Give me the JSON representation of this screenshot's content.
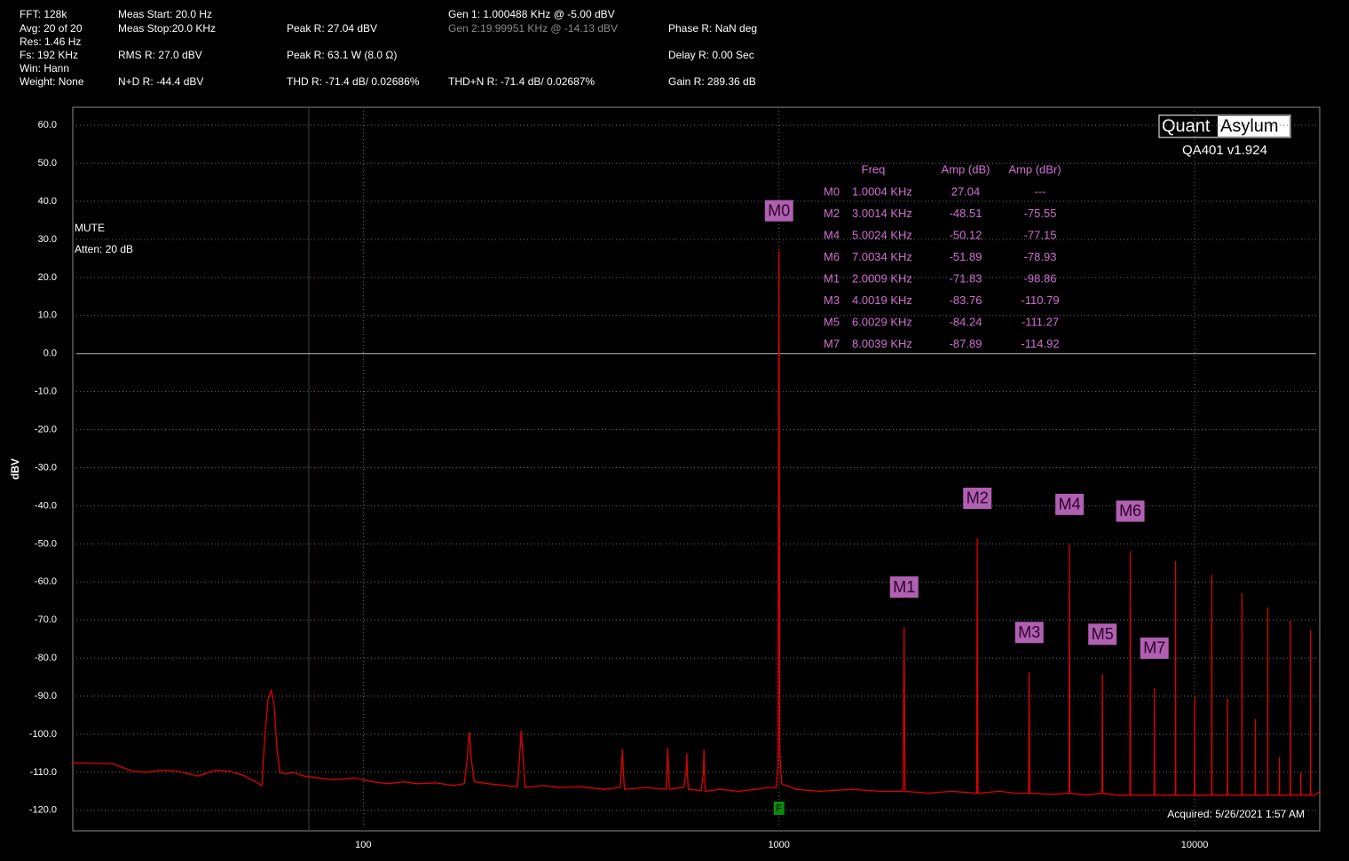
{
  "readouts": [
    "FFT: 128k",
    "Avg: 20 of 20",
    "Res: 1.46 Hz",
    "Fs: 192 KHz",
    "Win: Hann",
    "Weight: None",
    "Meas Start: 20.0 Hz",
    "Meas Stop:20.0 KHz",
    "RMS R: 27.0 dBV",
    "N+D R: -44.4 dBV",
    "Peak R: 27.04 dBV",
    "Peak R: 63.1 W (8.0 Ω)",
    "THD R: -71.4 dB/ 0.02686%",
    "Gen 1: 1.000488 KHz @ -5.00  dBV",
    "Gen 2:19.99951 KHz @ -14.13  dBV",
    "THD+N R: -71.4 dB/ 0.02687%",
    "Phase R: NaN deg",
    "Delay R: 0.00 Sec",
    "Gain R: 289.36 dB"
  ],
  "chart_data": {
    "type": "line",
    "ylabel": "dBV",
    "notes": [
      "MUTE",
      "Atten: 20 dB"
    ],
    "logo": [
      "Quant",
      "Asylum"
    ],
    "version": "QA401 v1.924",
    "acquired": "Acquired: 5/26/2021  1:57 AM",
    "fundamental_flag": "F",
    "xlog": true,
    "grid": true,
    "xlim": [
      20,
      20000
    ],
    "ylim": [
      -125.4,
      64.7
    ],
    "xticks": [
      100,
      1000,
      10000
    ],
    "yticks": [
      {
        "value": 60,
        "label": "60.0"
      },
      {
        "value": 50,
        "label": "50.0"
      },
      {
        "value": 40,
        "label": "40.0"
      },
      {
        "value": 30,
        "label": "30.0"
      },
      {
        "value": 20,
        "label": "20.0"
      },
      {
        "value": 10,
        "label": "10.0"
      },
      {
        "value": 0,
        "label": "0.0"
      },
      {
        "value": -10,
        "label": "-10.0"
      },
      {
        "value": -20,
        "label": "-20.0"
      },
      {
        "value": -30,
        "label": "-30.0"
      },
      {
        "value": -40,
        "label": "-40.0"
      },
      {
        "value": -50,
        "label": "-50.0"
      },
      {
        "value": -60,
        "label": "-60.0"
      },
      {
        "value": -70,
        "label": "-70.0"
      },
      {
        "value": -80,
        "label": "-80.0"
      },
      {
        "value": -90,
        "label": "-90.0"
      },
      {
        "value": -100,
        "label": "-100.0"
      },
      {
        "value": -110,
        "label": "-110.0"
      },
      {
        "value": -120,
        "label": "-120.0"
      }
    ],
    "x": [
      20,
      22,
      25,
      28,
      30,
      33,
      36,
      40,
      44,
      48,
      52,
      55,
      57,
      58,
      59,
      60,
      61,
      62,
      63,
      65,
      68,
      72,
      78,
      85,
      95,
      105,
      115,
      125,
      135,
      150,
      165,
      175,
      178,
      180,
      182,
      185,
      200,
      220,
      235,
      238,
      240,
      242,
      245,
      270,
      300,
      330,
      380,
      415,
      418,
      420,
      422,
      425,
      480,
      535,
      538,
      540,
      542,
      545,
      590,
      598,
      600,
      602,
      605,
      650,
      658,
      660,
      662,
      665,
      720,
      800,
      880,
      940,
      985,
      995,
      1000,
      1005,
      1015,
      1100,
      1250,
      1500,
      1750,
      1990,
      2000,
      2010,
      2300,
      2600,
      2990,
      3000,
      3010,
      3400,
      3700,
      3990,
      4000,
      4010,
      4500,
      4990,
      5000,
      5010,
      5500,
      5990,
      6000,
      6010,
      6500,
      6990,
      7000,
      7010,
      7500,
      7990,
      8000,
      8010,
      8500,
      8990,
      9000,
      9010,
      9500,
      9990,
      10000,
      10010,
      10500,
      10990,
      11000,
      11010,
      11500,
      11990,
      12000,
      12010,
      12500,
      12990,
      13000,
      13010,
      13500,
      13990,
      14000,
      14010,
      14500,
      14990,
      15000,
      15010,
      15500,
      15990,
      16000,
      16010,
      16500,
      16990,
      17000,
      17010,
      17500,
      17990,
      18000,
      18010,
      18500,
      18990,
      19000,
      19010,
      19500,
      20000
    ],
    "series": [
      {
        "color": "#e00000",
        "values": [
          -107.5,
          -107.6,
          -107.8,
          -109.8,
          -110,
          -109.5,
          -109.8,
          -111,
          -109.5,
          -109.8,
          -111,
          -112.5,
          -113.5,
          -100,
          -91,
          -88.5,
          -92,
          -104,
          -110,
          -110.5,
          -110,
          -111,
          -111.5,
          -112,
          -111.5,
          -112.5,
          -113,
          -112.5,
          -113,
          -112.8,
          -113.5,
          -113,
          -106,
          -99.5,
          -107,
          -112.5,
          -113,
          -113.5,
          -113.8,
          -105,
          -99,
          -105,
          -114,
          -113.5,
          -114,
          -113.8,
          -114.5,
          -114,
          -109,
          -104,
          -109,
          -114.5,
          -114,
          -114.5,
          -109,
          -103.5,
          -109,
          -114.5,
          -114,
          -110,
          -105,
          -110,
          -114.5,
          -114.8,
          -110,
          -104,
          -110,
          -115,
          -114.5,
          -115,
          -114.5,
          -114,
          -114,
          -108,
          27.04,
          -105,
          -113,
          -114.5,
          -115,
          -114.5,
          -115,
          -115,
          -71.83,
          -115,
          -115.5,
          -115,
          -115.5,
          -48.51,
          -115.5,
          -115,
          -115.5,
          -115.5,
          -83.76,
          -115.5,
          -115.8,
          -115.5,
          -50.12,
          -115.5,
          -116,
          -115.5,
          -84.24,
          -115.5,
          -116,
          -116,
          -51.89,
          -116,
          -116,
          -116,
          -87.89,
          -116,
          -116,
          -116,
          -54.5,
          -116,
          -116,
          -116,
          -90.2,
          -116,
          -116,
          -116,
          -58.1,
          -116,
          -116,
          -116,
          -90.7,
          -116,
          -116,
          -116,
          -63,
          -116,
          -116,
          -116,
          -96,
          -116,
          -116,
          -116,
          -66.7,
          -116,
          -116,
          -116,
          -106,
          -116,
          -116,
          -116,
          -70.2,
          -116,
          -116,
          -116,
          -110,
          -116,
          -116,
          -116,
          -72.7,
          -116,
          -116,
          -115
        ]
      }
    ],
    "marker_table": {
      "columns": [
        "Freq",
        "Amp (dB)",
        "Amp (dBr)"
      ]
    },
    "markers": [
      {
        "label": "M0",
        "freq": {
          "value": 1000.4,
          "label": "1.0004 KHz"
        },
        "amp": 27.04,
        "dbr": "---"
      },
      {
        "label": "M2",
        "freq": {
          "value": 3001.4,
          "label": "3.0014 KHz"
        },
        "amp": -48.51,
        "dbr": -75.55
      },
      {
        "label": "M4",
        "freq": {
          "value": 5002.4,
          "label": "5.0024 KHz"
        },
        "amp": -50.12,
        "dbr": -77.15
      },
      {
        "label": "M6",
        "freq": {
          "value": 7003.4,
          "label": "7.0034 KHz"
        },
        "amp": -51.89,
        "dbr": -78.93
      },
      {
        "label": "M1",
        "freq": {
          "value": 2000.9,
          "label": "2.0009 KHz"
        },
        "amp": -71.83,
        "dbr": -98.86
      },
      {
        "label": "M3",
        "freq": {
          "value": 4001.9,
          "label": "4.0019 KHz"
        },
        "amp": -83.76,
        "dbr": -110.79
      },
      {
        "label": "M5",
        "freq": {
          "value": 6002.9,
          "label": "6.0029 KHz"
        },
        "amp": -84.24,
        "dbr": -111.27
      },
      {
        "label": "M7",
        "freq": {
          "value": 8003.9,
          "label": "8.0039 KHz"
        },
        "amp": -87.89,
        "dbr": -114.92
      }
    ]
  }
}
